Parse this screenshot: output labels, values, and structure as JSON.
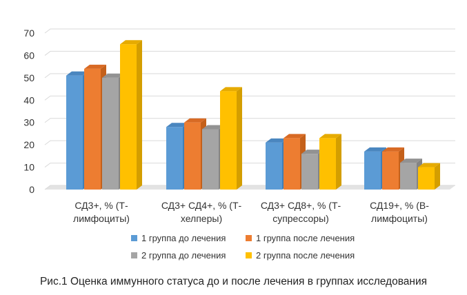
{
  "chart_data": {
    "type": "bar",
    "categories": [
      [
        "СД3+, % (Т-",
        "лимфоциты)"
      ],
      [
        "СД3+ СД4+, % (Т-",
        "хелперы)"
      ],
      [
        "СД3+ СД8+, % (Т-",
        "супрессоры)"
      ],
      [
        "СД19+, % (В-",
        "лимфоциты)"
      ]
    ],
    "series": [
      {
        "name": "1 группа до лечения",
        "values": [
          51,
          28,
          21,
          17
        ]
      },
      {
        "name": "1 группа после лечения",
        "values": [
          54,
          30,
          23,
          17
        ]
      },
      {
        "name": "2 группа до лечения",
        "values": [
          50,
          27,
          16,
          12
        ]
      },
      {
        "name": "2 группа после лечения",
        "values": [
          65,
          44,
          23,
          10
        ]
      }
    ],
    "ylim": [
      0,
      70
    ],
    "yticks": [
      0,
      10,
      20,
      30,
      40,
      50,
      60,
      70
    ],
    "grid": true,
    "legend_position": "bottom",
    "colors": {
      "series": [
        "#5b9bd5",
        "#ed7d31",
        "#a5a5a5",
        "#ffc000"
      ],
      "series_side": [
        "#3f7fb8",
        "#c4601a",
        "#848484",
        "#d49e00"
      ],
      "series_top": [
        "#4a86bf",
        "#d86a24",
        "#929292",
        "#e6ab00"
      ],
      "grid": "#d9d9d9",
      "floor": "#e3e3e3"
    }
  },
  "caption": "Рис.1 Оценка иммунного статуса до и после лечения в группах исследования"
}
